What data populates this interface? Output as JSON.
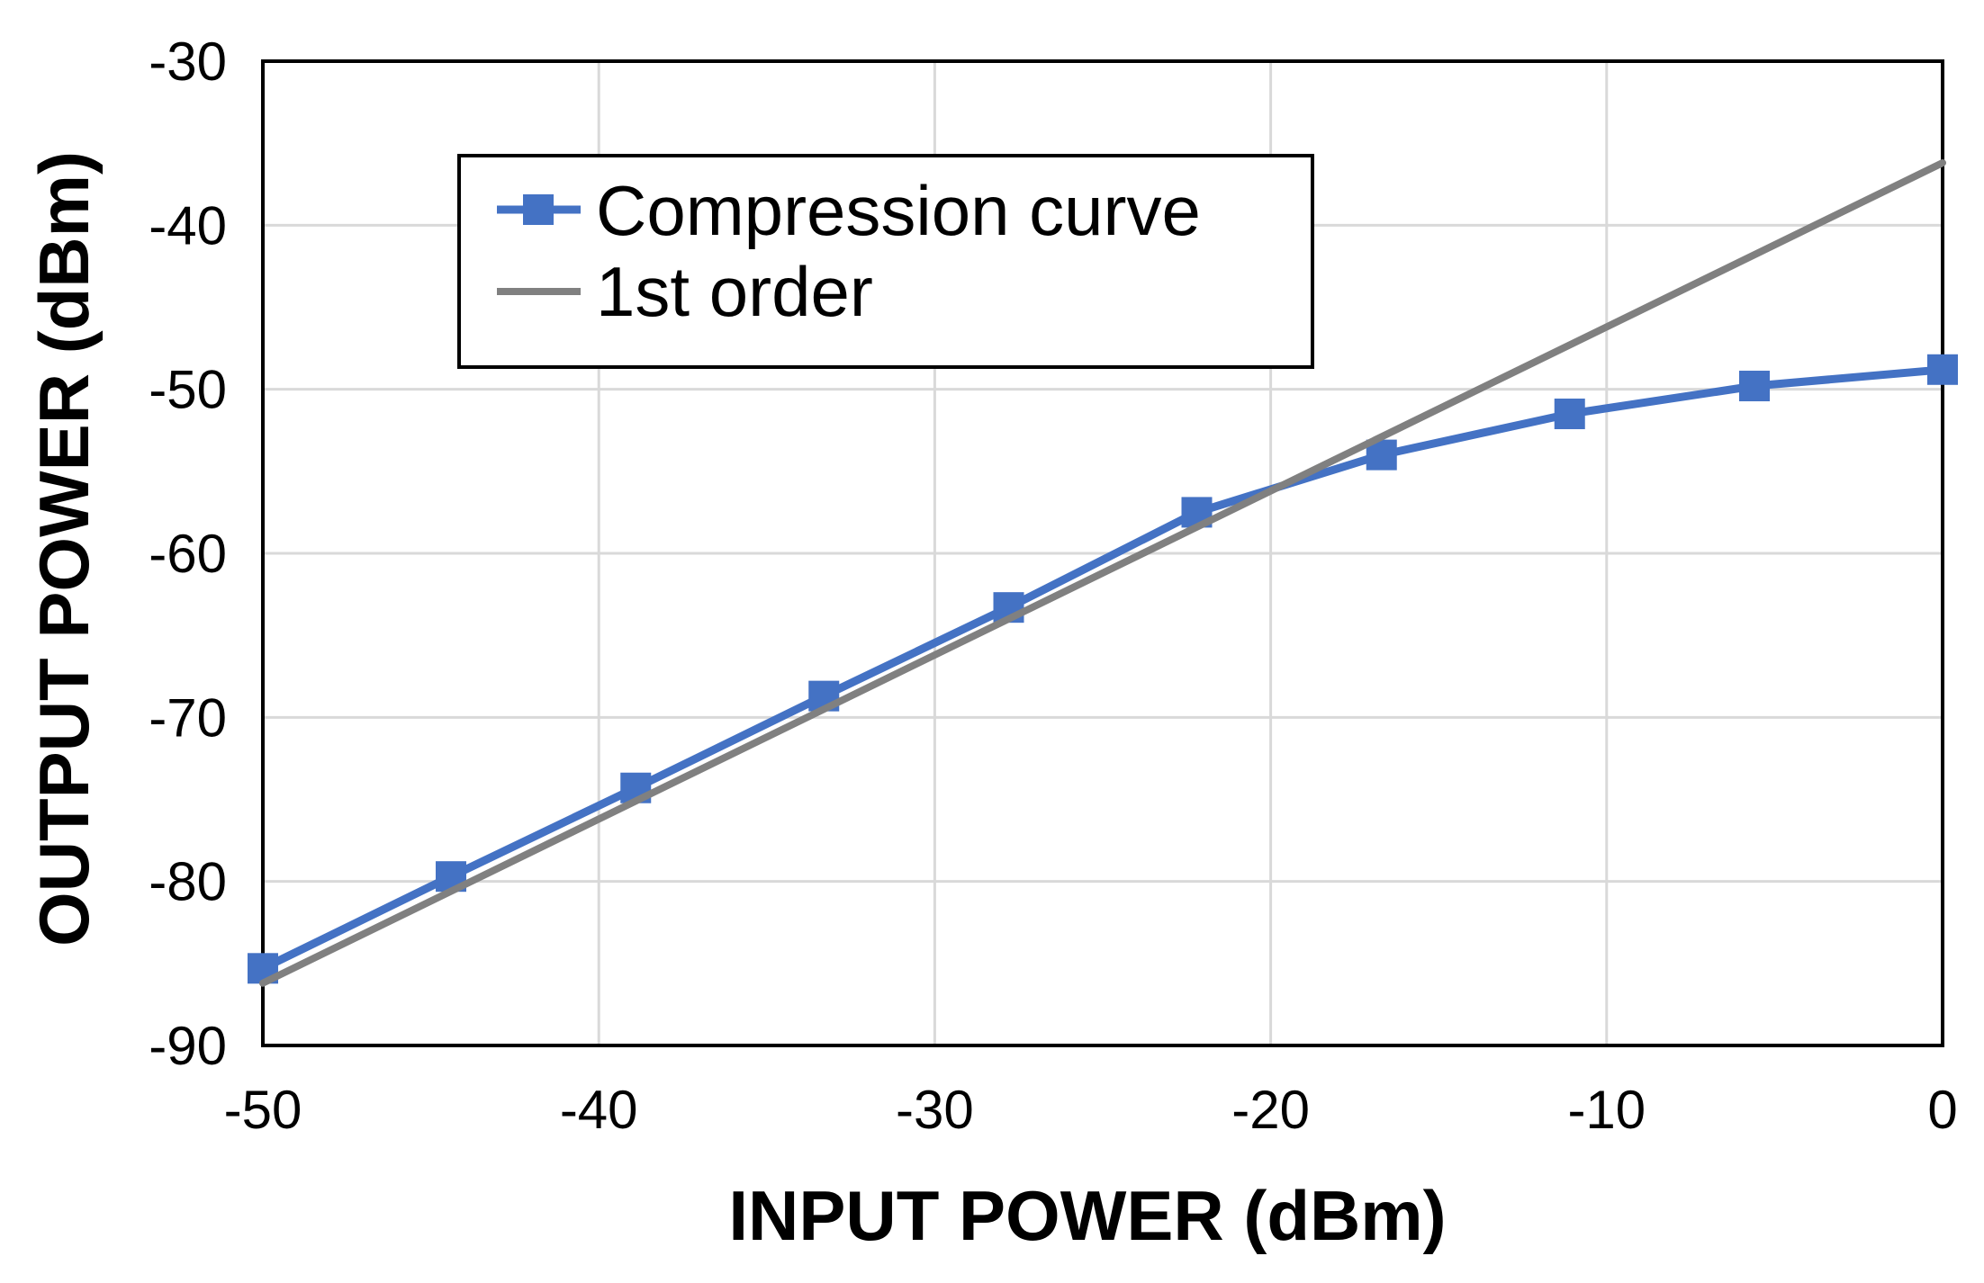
{
  "chart_data": {
    "type": "line",
    "xlabel": "INPUT POWER (dBm)",
    "ylabel": "OUTPUT POWER (dBm)",
    "xlim": [
      -50,
      0
    ],
    "ylim": [
      -90,
      -30
    ],
    "xticks": [
      -50,
      -40,
      -30,
      -20,
      -10,
      0
    ],
    "yticks": [
      -90,
      -80,
      -70,
      -60,
      -50,
      -40,
      -30
    ],
    "x_tick_labels": [
      "-50",
      "-40",
      "-30",
      "-20",
      "-10",
      "0"
    ],
    "y_tick_labels": [
      "-90",
      "-80",
      "-70",
      "-60",
      "-50",
      "-40",
      "-30"
    ],
    "grid": true,
    "legend_position": "top-left",
    "series": [
      {
        "name": "Compression curve",
        "color": "#4472C4",
        "marker": "square",
        "x": [
          -50,
          -44.4,
          -38.9,
          -33.3,
          -27.8,
          -22.2,
          -16.7,
          -11.1,
          -5.6,
          0
        ],
        "y": [
          -85.3,
          -79.7,
          -74.3,
          -68.7,
          -63.3,
          -57.5,
          -54.0,
          -51.5,
          -49.8,
          -48.8
        ]
      },
      {
        "name": "1st order",
        "color": "#808080",
        "marker": "none",
        "x": [
          -50,
          0
        ],
        "y": [
          -86.2,
          -36.2
        ]
      }
    ]
  }
}
